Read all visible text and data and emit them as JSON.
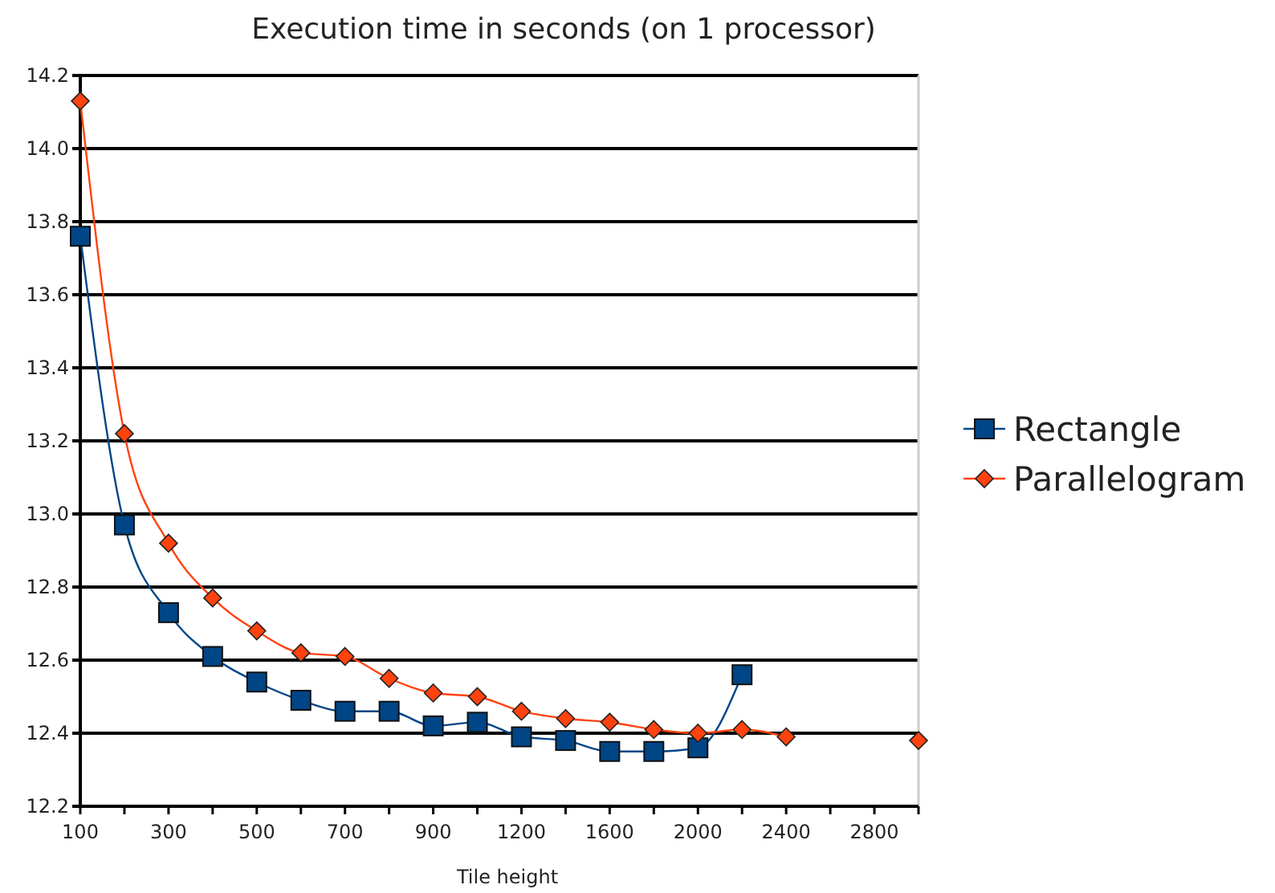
{
  "chart_data": {
    "type": "line",
    "title": "Execution time in seconds (on 1 processor)",
    "xlabel": "Tile height",
    "categories": [
      "100",
      null,
      "300",
      null,
      "500",
      null,
      "700",
      null,
      "900",
      null,
      "1200",
      null,
      "1600",
      null,
      "2000",
      null,
      "2400",
      null,
      "2800",
      null
    ],
    "series": [
      {
        "name": "Rectangle",
        "color": "#004586",
        "marker": "square",
        "values": [
          13.76,
          12.97,
          12.73,
          12.61,
          12.54,
          12.49,
          12.46,
          12.46,
          12.42,
          12.43,
          12.39,
          12.38,
          12.35,
          12.35,
          12.36,
          12.56,
          null,
          null,
          null,
          null
        ]
      },
      {
        "name": "Parallelogram",
        "color": "#ff420e",
        "marker": "diamond",
        "values": [
          14.13,
          13.22,
          12.92,
          12.77,
          12.68,
          12.62,
          12.61,
          12.55,
          12.51,
          12.5,
          12.46,
          12.44,
          12.43,
          12.41,
          12.4,
          12.41,
          12.39,
          null,
          null,
          12.38
        ]
      }
    ],
    "ylim": [
      12.2,
      14.2
    ],
    "yticks": [
      {
        "value": 12.2,
        "label": "12.2"
      },
      {
        "value": 12.4,
        "label": "12.4"
      },
      {
        "value": 12.6,
        "label": "12.6"
      },
      {
        "value": 12.8,
        "label": "12.8"
      },
      {
        "value": 13,
        "label": "13.0"
      },
      {
        "value": 13.2,
        "label": "13.2"
      },
      {
        "value": 13.4,
        "label": "13.4"
      },
      {
        "value": 13.6,
        "label": "13.6"
      },
      {
        "value": 13.8,
        "label": "13.8"
      },
      {
        "value": 14,
        "label": "14.0"
      },
      {
        "value": 14.2,
        "label": "14.2"
      }
    ],
    "grid": "y",
    "legend": "right"
  }
}
